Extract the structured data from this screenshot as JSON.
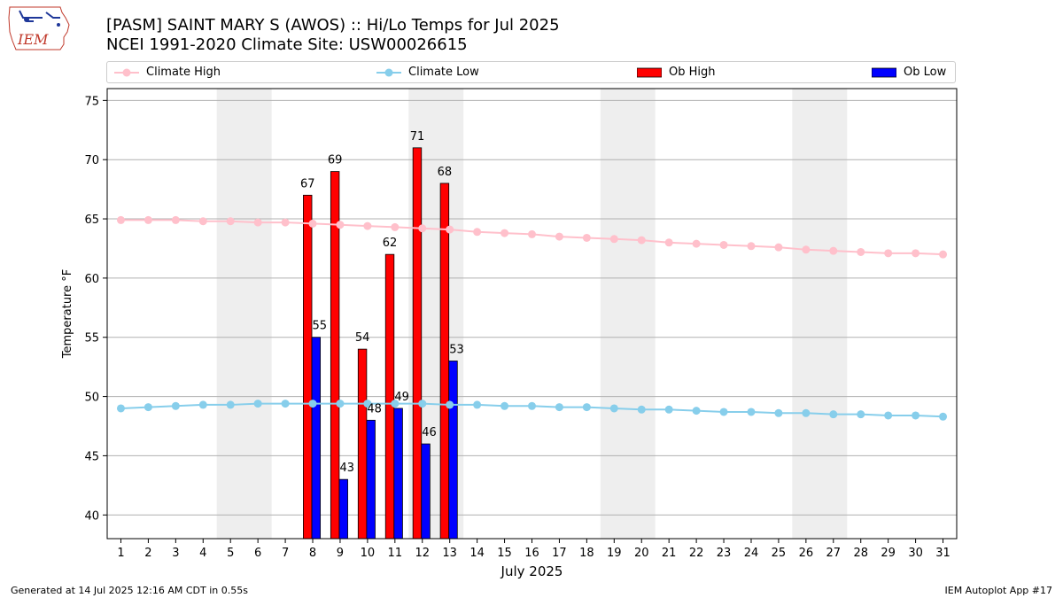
{
  "header": {
    "title_line1": "[PASM] SAINT MARY S (AWOS) :: Hi/Lo Temps for Jul 2025",
    "title_line2": "NCEI 1991-2020 Climate Site: USW00026615",
    "logo_text": "IEM"
  },
  "legend": {
    "items": [
      {
        "label": "Climate High",
        "color": "#ffc0cb",
        "kind": "line"
      },
      {
        "label": "Climate Low",
        "color": "#87ceeb",
        "kind": "line"
      },
      {
        "label": "Ob High",
        "color": "#ff0000",
        "kind": "bar"
      },
      {
        "label": "Ob Low",
        "color": "#0000ff",
        "kind": "bar"
      }
    ]
  },
  "footer": {
    "generated": "Generated at 14 Jul 2025 12:16 AM CDT in 0.55s",
    "app": "IEM Autoplot App #17"
  },
  "chart_data": {
    "type": "bar",
    "xlabel": "July 2025",
    "ylabel": "Temperature °F",
    "ylim": [
      38,
      76
    ],
    "xlim": [
      0.5,
      31.5
    ],
    "yticks": [
      40,
      45,
      50,
      55,
      60,
      65,
      70,
      75
    ],
    "grid": "horizontal",
    "legend_position": "top",
    "days": [
      1,
      2,
      3,
      4,
      5,
      6,
      7,
      8,
      9,
      10,
      11,
      12,
      13,
      14,
      15,
      16,
      17,
      18,
      19,
      20,
      21,
      22,
      23,
      24,
      25,
      26,
      27,
      28,
      29,
      30,
      31
    ],
    "weekend_shading": [
      [
        5,
        6
      ],
      [
        12,
        13
      ],
      [
        19,
        20
      ],
      [
        26,
        27
      ]
    ],
    "climate_high": [
      64.9,
      64.9,
      64.9,
      64.8,
      64.8,
      64.7,
      64.7,
      64.6,
      64.5,
      64.4,
      64.3,
      64.2,
      64.1,
      63.9,
      63.8,
      63.7,
      63.5,
      63.4,
      63.3,
      63.2,
      63.0,
      62.9,
      62.8,
      62.7,
      62.6,
      62.4,
      62.3,
      62.2,
      62.1,
      62.1,
      62.0
    ],
    "climate_low": [
      49.0,
      49.1,
      49.2,
      49.3,
      49.3,
      49.4,
      49.4,
      49.4,
      49.4,
      49.4,
      49.4,
      49.4,
      49.3,
      49.3,
      49.2,
      49.2,
      49.1,
      49.1,
      49.0,
      48.9,
      48.9,
      48.8,
      48.7,
      48.7,
      48.6,
      48.6,
      48.5,
      48.5,
      48.4,
      48.4,
      48.3
    ],
    "ob_days": [
      8,
      9,
      10,
      11,
      12,
      13
    ],
    "ob_high": [
      67,
      69,
      54,
      62,
      71,
      68
    ],
    "ob_low": [
      55,
      43,
      48,
      49,
      46,
      53
    ],
    "colors": {
      "climate_high": "#ffc0cb",
      "climate_low": "#87ceeb",
      "ob_high": "#ff0000",
      "ob_low": "#0000ff",
      "weekend": "#eeeeee",
      "grid": "#b0b0b0"
    }
  }
}
